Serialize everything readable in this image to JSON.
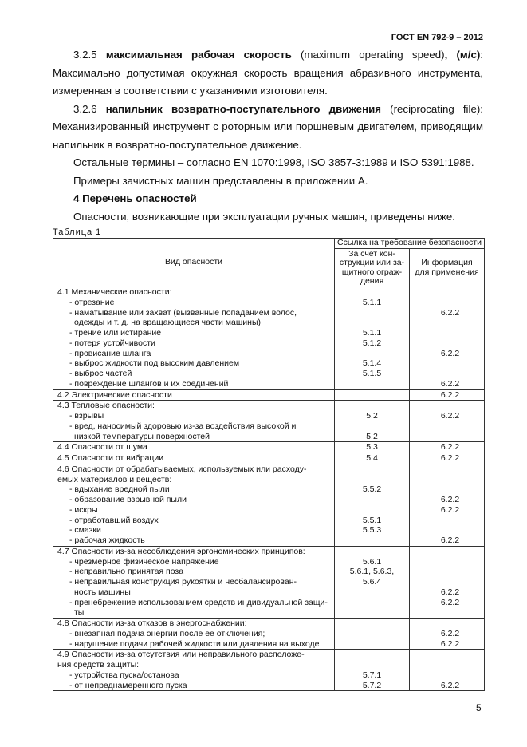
{
  "header": "ГОСТ EN 792-9 – 2012",
  "paragraphs": [
    {
      "num": "3.2.5",
      "bold": "максимальная рабочая скорость",
      "rest": " (maximum operating speed)",
      "bold2": ", (м/с)",
      "tail": ": Максимально допустимая окружная скорость вращения абразивного инструмента, измеренная в соответствии с указаниями изготовителя."
    },
    {
      "num": "3.2.6",
      "bold": "напильник возвратно-поступательного движения",
      "rest": " (reciprocating file)",
      "bold2": "",
      "tail": ": Механизированный инструмент с роторным или поршневым двигателем, приводящим напильник в возвратно-поступательное движение."
    }
  ],
  "other_terms": "Остальные термины – согласно EN 1070:1998, ISO 3857-3:1989 и ISO 5391:1988.",
  "examples": "Примеры зачистных машин представлены в приложении А.",
  "section_title": "4 Перечень опасностей",
  "intro": "Опасности, возникающие при эксплуатации ручных машин, приведены ниже.",
  "table_caption": "Таблица 1",
  "table": {
    "col_hazard": "Вид опасности",
    "col_ref": "Ссылка на требование безопасности",
    "col_design": [
      "За счет кон-",
      "струкции или за-",
      "щитного ограж-",
      "дения"
    ],
    "col_info": [
      "Информация",
      "для применения"
    ],
    "rows": [
      {
        "lines": [
          {
            "t": "head",
            "text": "4.1 Механические опасности:",
            "a": "",
            "b": ""
          },
          {
            "t": "item",
            "text": "- отрезание",
            "a": "5.1.1",
            "b": ""
          },
          {
            "t": "item",
            "text": "- наматывание или захват (вызванные попаданием волос,",
            "a": "",
            "b": "6.2.2"
          },
          {
            "t": "cont",
            "text": "одежды и т. д. на вращающиеся части машины)",
            "a": "",
            "b": ""
          },
          {
            "t": "item",
            "text": "- трение или истирание",
            "a": "5.1.1",
            "b": ""
          },
          {
            "t": "item",
            "text": "- потеря устойчивости",
            "a": "5.1.2",
            "b": ""
          },
          {
            "t": "item",
            "text": "- провисание шланга",
            "a": "",
            "b": "6.2.2"
          },
          {
            "t": "item",
            "text": "- выброс жидкости под высоким давлением",
            "a": "5.1.4",
            "b": ""
          },
          {
            "t": "item",
            "text": "- выброс частей",
            "a": "5.1.5",
            "b": ""
          },
          {
            "t": "item",
            "text": "- повреждение шлангов и их соединений",
            "a": "",
            "b": "6.2.2"
          }
        ]
      },
      {
        "lines": [
          {
            "t": "head",
            "text": "4.2 Электрические опасности",
            "a": "",
            "b": "6.2.2"
          }
        ]
      },
      {
        "lines": [
          {
            "t": "head",
            "text": "4.3 Тепловые опасности:",
            "a": "",
            "b": ""
          },
          {
            "t": "item",
            "text": "- взрывы",
            "a": "5.2",
            "b": "6.2.2"
          },
          {
            "t": "item",
            "text": "- вред, наносимый здоровью из-за воздействия высокой и",
            "a": "",
            "b": ""
          },
          {
            "t": "cont",
            "text": "низкой температуры поверхностей",
            "a": "5.2",
            "b": ""
          }
        ]
      },
      {
        "lines": [
          {
            "t": "head",
            "text": "4.4 Опасности от шума",
            "a": "5.3",
            "b": "6.2.2"
          }
        ]
      },
      {
        "lines": [
          {
            "t": "head",
            "text": "4.5 Опасности от вибрации",
            "a": "5.4",
            "b": "6.2.2"
          }
        ]
      },
      {
        "lines": [
          {
            "t": "head",
            "text": "4.6 Опасности от обрабатываемых, используемых или расходу-",
            "a": "",
            "b": ""
          },
          {
            "t": "head",
            "text": "емых материалов и веществ:",
            "a": "",
            "b": ""
          },
          {
            "t": "item",
            "text": "- вдыхание вредной пыли",
            "a": "5.5.2",
            "b": ""
          },
          {
            "t": "item",
            "text": "- образование взрывной пыли",
            "a": "",
            "b": "6.2.2"
          },
          {
            "t": "item",
            "text": "- искры",
            "a": "",
            "b": "6.2.2"
          },
          {
            "t": "item",
            "text": "- отработавший воздух",
            "a": "5.5.1",
            "b": ""
          },
          {
            "t": "item",
            "text": "- смазки",
            "a": "5.5.3",
            "b": ""
          },
          {
            "t": "item",
            "text": "- рабочая жидкость",
            "a": "",
            "b": "6.2.2"
          }
        ]
      },
      {
        "lines": [
          {
            "t": "head",
            "text": "4.7 Опасности из-за несоблюдения эргономических принципов:",
            "a": "",
            "b": ""
          },
          {
            "t": "item",
            "text": "- чрезмерное физическое напряжение",
            "a": "5.6.1",
            "b": ""
          },
          {
            "t": "item",
            "text": "- неправильно принятая поза",
            "a": "5.6.1, 5.6.3,",
            "b": ""
          },
          {
            "t": "item",
            "text": "- неправильная конструкция рукоятки и несбалансирован-",
            "a": "5.6.4",
            "b": ""
          },
          {
            "t": "cont",
            "text": "ность машины",
            "a": "",
            "b": "6.2.2"
          },
          {
            "t": "item",
            "text": "- пренебрежение использованием средств индивидуальной защи-",
            "a": "",
            "b": "6.2.2"
          },
          {
            "t": "cont",
            "text": "ты",
            "a": "",
            "b": ""
          }
        ]
      },
      {
        "lines": [
          {
            "t": "head",
            "text": "4.8 Опасности из-за отказов в энергоснабжении:",
            "a": "",
            "b": ""
          },
          {
            "t": "item",
            "text": "- внезапная подача энергии после ее отключения;",
            "a": "",
            "b": "6.2.2"
          },
          {
            "t": "item",
            "text": "- нарушение подачи рабочей жидкости или давления на выходе",
            "a": "",
            "b": "6.2.2"
          }
        ]
      },
      {
        "lines": [
          {
            "t": "head",
            "text": "4.9 Опасности из-за отсутствия или неправильного расположе-",
            "a": "",
            "b": ""
          },
          {
            "t": "head",
            "text": "ния средств защиты:",
            "a": "",
            "b": ""
          },
          {
            "t": "item",
            "text": "- устройства пуска/останова",
            "a": "5.7.1",
            "b": ""
          },
          {
            "t": "item",
            "text": "- от непреднамеренного пуска",
            "a": "5.7.2",
            "b": "6.2.2"
          }
        ]
      }
    ]
  },
  "page_number": "5"
}
